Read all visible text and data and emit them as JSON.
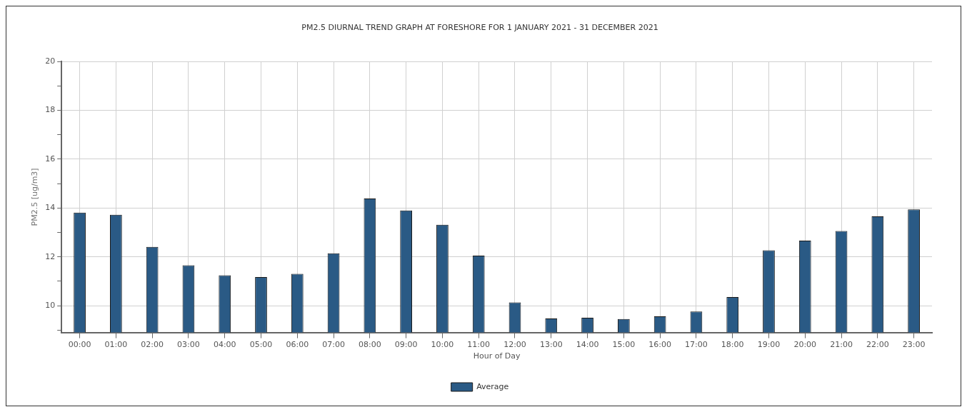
{
  "chart_data": {
    "type": "bar",
    "title": "PM2.5 DIURNAL TREND GRAPH AT FORESHORE FOR 1 JANUARY 2021 - 31 DECEMBER 2021",
    "xlabel": "Hour of Day",
    "ylabel": "PM2.5 [ug/m3]",
    "categories": [
      "00:00",
      "01:00",
      "02:00",
      "03:00",
      "04:00",
      "05:00",
      "06:00",
      "07:00",
      "08:00",
      "09:00",
      "10:00",
      "11:00",
      "12:00",
      "13:00",
      "14:00",
      "15:00",
      "16:00",
      "17:00",
      "18:00",
      "19:00",
      "20:00",
      "21:00",
      "22:00",
      "23:00"
    ],
    "series": [
      {
        "name": "Average",
        "color": "#2a5a85",
        "values": [
          13.81,
          13.72,
          12.41,
          11.65,
          11.24,
          11.17,
          11.3,
          12.14,
          14.39,
          13.9,
          13.31,
          12.05,
          10.13,
          9.47,
          9.5,
          9.45,
          9.56,
          9.76,
          10.35,
          12.27,
          12.66,
          13.06,
          13.66,
          13.94
        ]
      }
    ],
    "ylim": [
      8.9,
      20
    ],
    "yticks": [
      {
        "value": 9,
        "label": null
      },
      10,
      {
        "value": 11,
        "label": null
      },
      12,
      {
        "value": 13,
        "label": null
      },
      14,
      {
        "value": 15,
        "label": null
      },
      16,
      {
        "value": 17,
        "label": null
      },
      18,
      {
        "value": 19,
        "label": null
      },
      20
    ],
    "grid": true,
    "legend": "bottom"
  }
}
